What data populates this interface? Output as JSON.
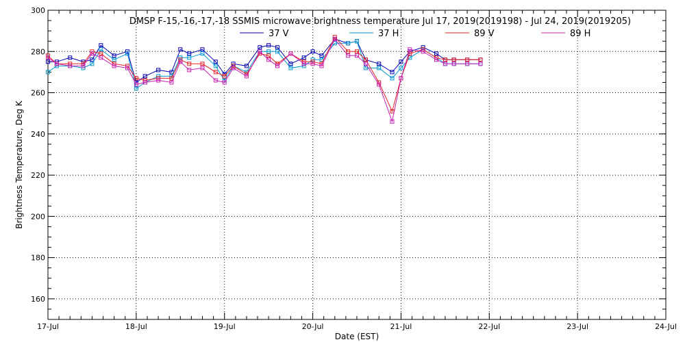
{
  "chart_data": {
    "type": "line",
    "title": "DMSP F-15,-16,-17,-18 SSMIS microwave brightness temperature Jul 17, 2019(2019198) - Jul 24, 2019(2019205)",
    "xlabel": "Date (EST)",
    "ylabel": "Brightness Temperature, Deg K",
    "xlim": [
      "2019-07-17",
      "2019-07-24"
    ],
    "ylim": [
      150,
      300
    ],
    "x_tick_labels": [
      "17-Jul",
      "18-Jul",
      "19-Jul",
      "20-Jul",
      "21-Jul",
      "22-Jul",
      "23-Jul",
      "24-Jul"
    ],
    "y_tick_labels": [
      "160",
      "180",
      "200",
      "220",
      "240",
      "260",
      "280",
      "300"
    ],
    "y_ticks": [
      160,
      180,
      200,
      220,
      240,
      260,
      280,
      300
    ],
    "grid": true,
    "legend_position": "top-center",
    "x": [
      "2019-07-17 00:00",
      "2019-07-17 02:24",
      "2019-07-17 06:00",
      "2019-07-17 09:36",
      "2019-07-17 12:00",
      "2019-07-17 14:24",
      "2019-07-17 18:00",
      "2019-07-17 21:36",
      "2019-07-18 00:00",
      "2019-07-18 02:24",
      "2019-07-18 06:00",
      "2019-07-18 09:36",
      "2019-07-18 12:00",
      "2019-07-18 14:24",
      "2019-07-18 18:00",
      "2019-07-18 21:36",
      "2019-07-19 00:00",
      "2019-07-19 02:24",
      "2019-07-19 06:00",
      "2019-07-19 09:36",
      "2019-07-19 12:00",
      "2019-07-19 14:24",
      "2019-07-19 18:00",
      "2019-07-19 21:36",
      "2019-07-20 00:00",
      "2019-07-20 02:24",
      "2019-07-20 06:00",
      "2019-07-20 09:36",
      "2019-07-20 12:00",
      "2019-07-20 14:24",
      "2019-07-20 18:00",
      "2019-07-20 21:36",
      "2019-07-21 00:00",
      "2019-07-21 02:24",
      "2019-07-21 06:00",
      "2019-07-21 09:36",
      "2019-07-21 12:00",
      "2019-07-21 14:24",
      "2019-07-21 18:00",
      "2019-07-21 21:36"
    ],
    "series": [
      {
        "name": "37 V",
        "color": "#0000b4",
        "values": [
          275,
          275,
          277,
          275,
          276,
          283,
          278,
          280,
          265,
          268,
          271,
          270,
          281,
          279,
          281,
          275,
          269,
          274,
          273,
          282,
          283,
          282,
          274,
          277,
          280,
          278,
          286,
          284,
          285,
          276,
          274,
          270,
          275,
          280,
          282,
          279,
          276,
          276,
          276,
          276
        ]
      },
      {
        "name": "37 H",
        "color": "#0096d2",
        "values": [
          270,
          273,
          273,
          272,
          274,
          281,
          276,
          279,
          262,
          265,
          268,
          268,
          277,
          277,
          279,
          273,
          266,
          273,
          270,
          280,
          280,
          280,
          272,
          273,
          276,
          276,
          284,
          284,
          285,
          272,
          272,
          267,
          272,
          277,
          281,
          277,
          274,
          274,
          274,
          274
        ]
      },
      {
        "name": "89 V",
        "color": "#e61e1e",
        "values": [
          278,
          274,
          274,
          274,
          280,
          279,
          274,
          273,
          267,
          266,
          267,
          267,
          276,
          274,
          274,
          270,
          268,
          273,
          269,
          279,
          278,
          274,
          279,
          275,
          275,
          274,
          287,
          280,
          280,
          276,
          265,
          251,
          267,
          279,
          281,
          277,
          276,
          276,
          276,
          276
        ]
      },
      {
        "name": "89 H",
        "color": "#c81eb4",
        "values": [
          277,
          274,
          273,
          273,
          279,
          277,
          273,
          272,
          264,
          265,
          266,
          265,
          275,
          271,
          272,
          266,
          265,
          272,
          268,
          280,
          276,
          273,
          279,
          274,
          274,
          273,
          286,
          278,
          278,
          274,
          264,
          246,
          267,
          281,
          280,
          276,
          274,
          274,
          274,
          274
        ]
      }
    ]
  }
}
